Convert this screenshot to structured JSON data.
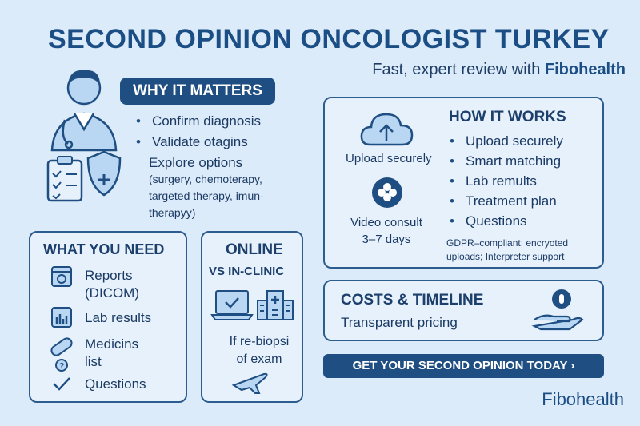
{
  "header": {
    "title": "SECOND OPINION ONCOLOGIST TURKEY",
    "subtitle_prefix": "Fast, expert review with ",
    "subtitle_brand": "Fibohealth"
  },
  "why": {
    "heading": "WHY IT MATTERS",
    "items": [
      "Confirm diagnosis",
      "Validate otagins"
    ],
    "explore_line": "Explore options",
    "explore_detail": [
      "(surgery, chemoterapy,",
      "targeted therapy, imun-",
      "therapyy)"
    ]
  },
  "need": {
    "heading": "WHAT YOU NEED",
    "items": [
      {
        "lines": [
          "Reports",
          "(DICOM)"
        ],
        "icon": "report-icon"
      },
      {
        "lines": [
          "Lab results"
        ],
        "icon": "bar-chart-icon"
      },
      {
        "lines": [
          "Medicins",
          "list"
        ],
        "icon": "pill-icon"
      },
      {
        "lines": [
          "Questions"
        ],
        "icon": "check-icon"
      }
    ]
  },
  "online": {
    "heading": "ONLINE",
    "subheading": "VS IN-CLINIC",
    "note": [
      "If re-biopsi",
      "of exam"
    ]
  },
  "how": {
    "heading": "HOW IT WORKS",
    "upload_label": "Upload securely",
    "video_label": [
      "Video consult",
      "3–7 days"
    ],
    "steps": [
      "Upload securely",
      "Smart matching",
      "Lab remults",
      "Treatment plan",
      "Questions"
    ],
    "footnote": [
      "GDPR–compliant; encryoted",
      "uploads; Interpreter support"
    ]
  },
  "costs": {
    "heading": "COSTS & TIMELINE",
    "subtext": "Transparent pricing"
  },
  "cta": {
    "label": "GET YOUR SECOND OPINION TODAY ›"
  },
  "brand": "Fibohealth",
  "colors": {
    "navy": "#1f4f82",
    "background": "#dcebf9",
    "card": "#e6f1fc",
    "icon_fill": "#b9d6f2"
  }
}
